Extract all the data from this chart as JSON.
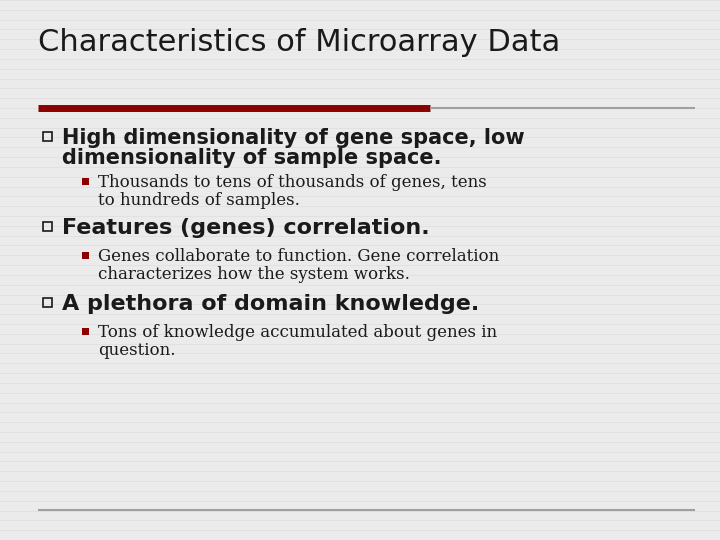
{
  "title": "Characteristics of Microarray Data",
  "bg_color": "#ebebeb",
  "stripe_color": "#d8d8d8",
  "title_color": "#1a1a1a",
  "title_bar_left_color": "#8b0000",
  "title_bar_right_color": "#a0a0a0",
  "main_bullet_color": "#1a1a1a",
  "sub_bullet_color": "#8b0000",
  "text_color": "#1a1a1a",
  "bullet1_text_line1": "High dimensionality of gene space, low",
  "bullet1_text_line2": "dimensionality of sample space.",
  "bullet1_sub_line1": "Thousands to tens of thousands of genes, tens",
  "bullet1_sub_line2": "to hundreds of samples.",
  "bullet2_text": "Features (genes) correlation.",
  "bullet2_sub_line1": "Genes collaborate to function. Gene correlation",
  "bullet2_sub_line2": "characterizes how the system works.",
  "bullet3_text": "A plethora of domain knowledge.",
  "bullet3_sub_line1": "Tons of knowledge accumulated about genes in",
  "bullet3_sub_line2": "question.",
  "title_fontsize": 22,
  "bullet_main_fontsize": 15,
  "bullet_sub_fontsize": 12,
  "fig_width": 7.2,
  "fig_height": 5.4,
  "dpi": 100
}
